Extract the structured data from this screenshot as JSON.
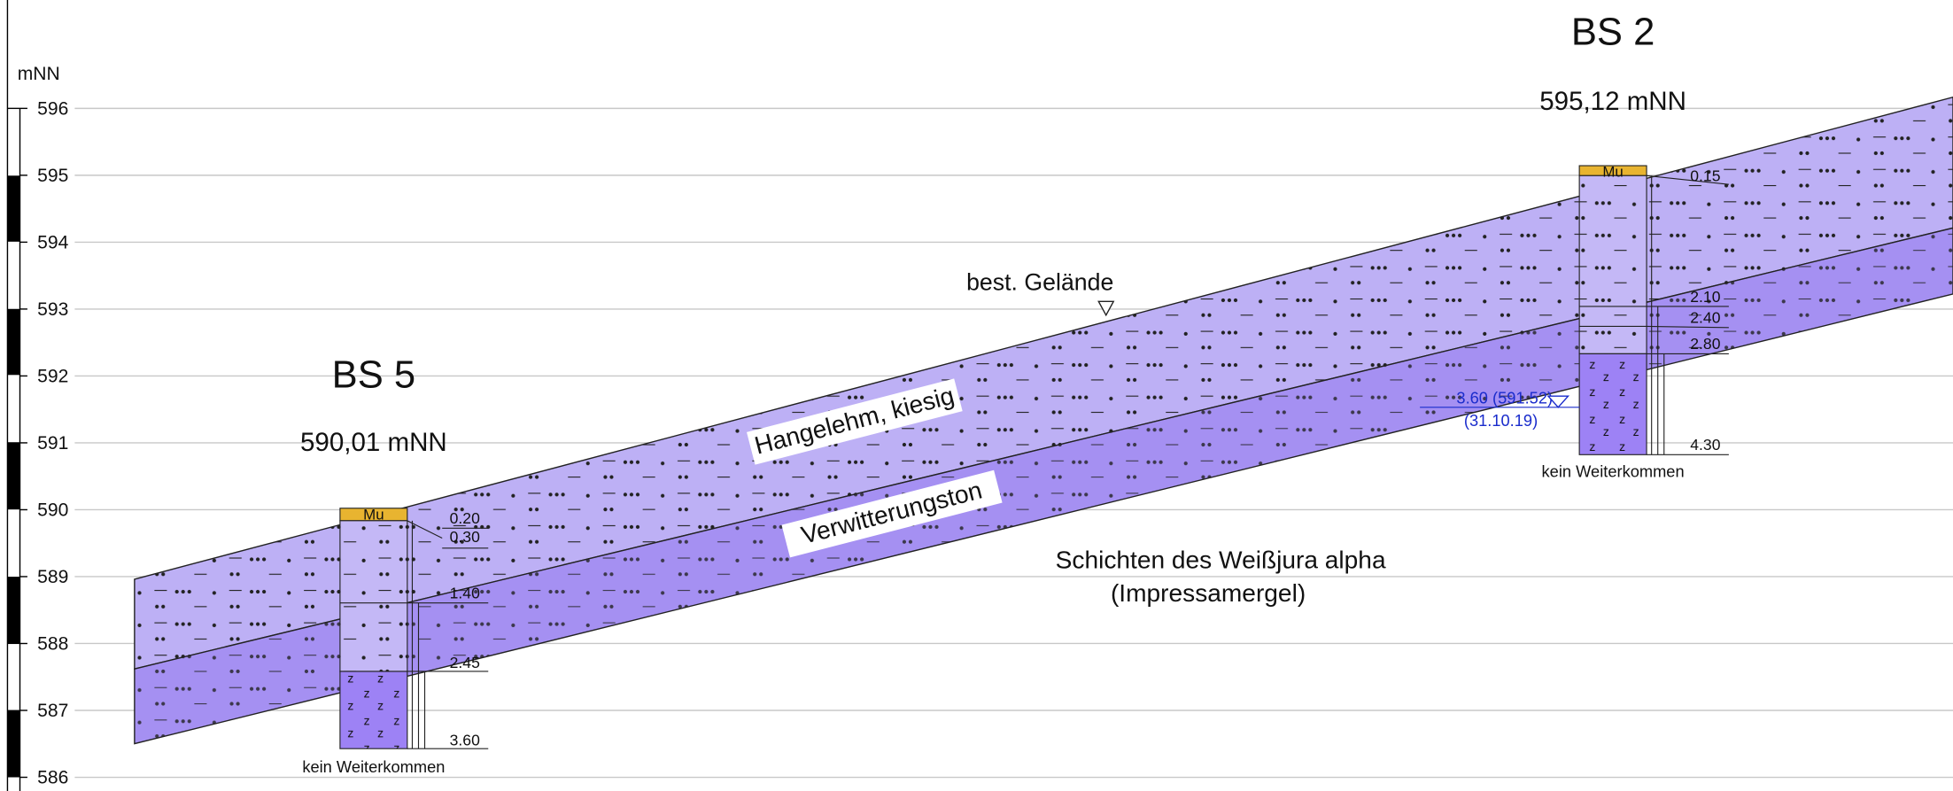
{
  "axis": {
    "unit": "mNN",
    "ticks": [
      "596",
      "595",
      "594",
      "593",
      "592",
      "591",
      "590",
      "589",
      "588",
      "587",
      "586"
    ]
  },
  "boreholes": [
    {
      "name": "BS 5",
      "elevation": "590,01 mNN",
      "top_layer": "Mu",
      "depths": [
        "0.20",
        "0.30",
        "1.40",
        "2.45",
        "3.60"
      ],
      "end_note": "kein Weiterkommen"
    },
    {
      "name": "BS 2",
      "elevation": "595,12 mNN",
      "top_layer": "Mu",
      "depths": [
        "0.15",
        "2.10",
        "2.40",
        "2.80",
        "4.30"
      ],
      "end_note": "kein Weiterkommen",
      "water_level": "3.60 (591.52)",
      "water_date": "(31.10.19)"
    }
  ],
  "labels": {
    "surface": "best. Gelände",
    "layer_1": "Hangelehm, kiesig",
    "layer_2": "Verwitterungston",
    "bedrock": "Schichten des Weißjura alpha",
    "bedrock_sub": "(Impressamergel)"
  }
}
